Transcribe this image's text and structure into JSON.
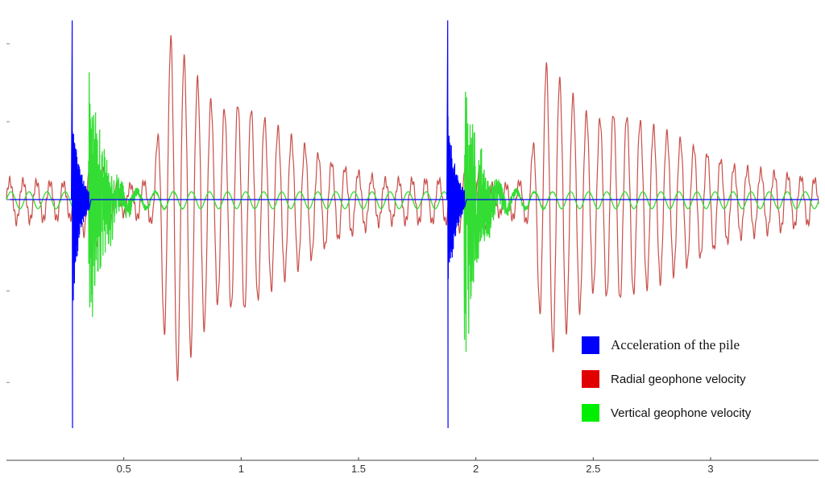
{
  "chart_data": {
    "type": "line",
    "title": "",
    "xlabel": "",
    "ylabel": "",
    "xlim": [
      0,
      3.46
    ],
    "ylim": [
      -1,
      1
    ],
    "grid": false,
    "legend_placement": "bottom-right",
    "x_ticks": [
      {
        "value": 0.5,
        "label": "0.5"
      },
      {
        "value": 1,
        "label": "1"
      },
      {
        "value": 1.5,
        "label": "1.5"
      },
      {
        "value": 2,
        "label": "2"
      },
      {
        "value": 2.5,
        "label": "2.5"
      },
      {
        "value": 3,
        "label": "3"
      }
    ],
    "y_ticks": [
      0.8,
      0.4,
      0,
      -0.4,
      -0.8
    ],
    "strikes": [
      0.28,
      1.88
    ],
    "series": [
      {
        "name": "Acceleration of the pile",
        "color": "#0000ff",
        "peaks": [
          {
            "t": 0.28,
            "y": 0.92
          },
          {
            "t": 1.88,
            "y": 0.92
          }
        ],
        "peak_min": [
          -0.52,
          -0.52
        ],
        "decay_s": 0.03
      },
      {
        "name": "Radial geophone velocity",
        "color": "#e00000",
        "line_color": "#c8504a",
        "envelope": [
          {
            "t": 0.0,
            "a": 0.1
          },
          {
            "t": 0.3,
            "a": 0.08
          },
          {
            "t": 0.36,
            "a": 0.22
          },
          {
            "t": 0.48,
            "a": 0.06
          },
          {
            "t": 0.62,
            "a": 0.1
          },
          {
            "t": 0.7,
            "a": 0.84
          },
          {
            "t": 0.9,
            "a": 0.45
          },
          {
            "t": 1.0,
            "a": 0.5
          },
          {
            "t": 1.2,
            "a": 0.33
          },
          {
            "t": 1.4,
            "a": 0.18
          },
          {
            "t": 1.6,
            "a": 0.1
          },
          {
            "t": 1.8,
            "a": 0.1
          },
          {
            "t": 1.92,
            "a": 0.1
          },
          {
            "t": 1.96,
            "a": 0.22
          },
          {
            "t": 2.08,
            "a": 0.06
          },
          {
            "t": 2.22,
            "a": 0.1
          },
          {
            "t": 2.3,
            "a": 0.7
          },
          {
            "t": 2.5,
            "a": 0.4
          },
          {
            "t": 2.6,
            "a": 0.45
          },
          {
            "t": 2.8,
            "a": 0.35
          },
          {
            "t": 3.1,
            "a": 0.17
          },
          {
            "t": 3.46,
            "a": 0.1
          }
        ],
        "frequency_hz": 17.5
      },
      {
        "name": "Vertical geophone velocity",
        "color": "#00ee00",
        "line_color": "#33dd33",
        "bursts": [
          {
            "t": 0.36,
            "amp": 0.68,
            "decay_s": 0.06
          },
          {
            "t": 1.96,
            "amp": 0.68,
            "decay_s": 0.06
          }
        ],
        "background_amp": 0.04,
        "frequency_hz": 13
      }
    ]
  }
}
